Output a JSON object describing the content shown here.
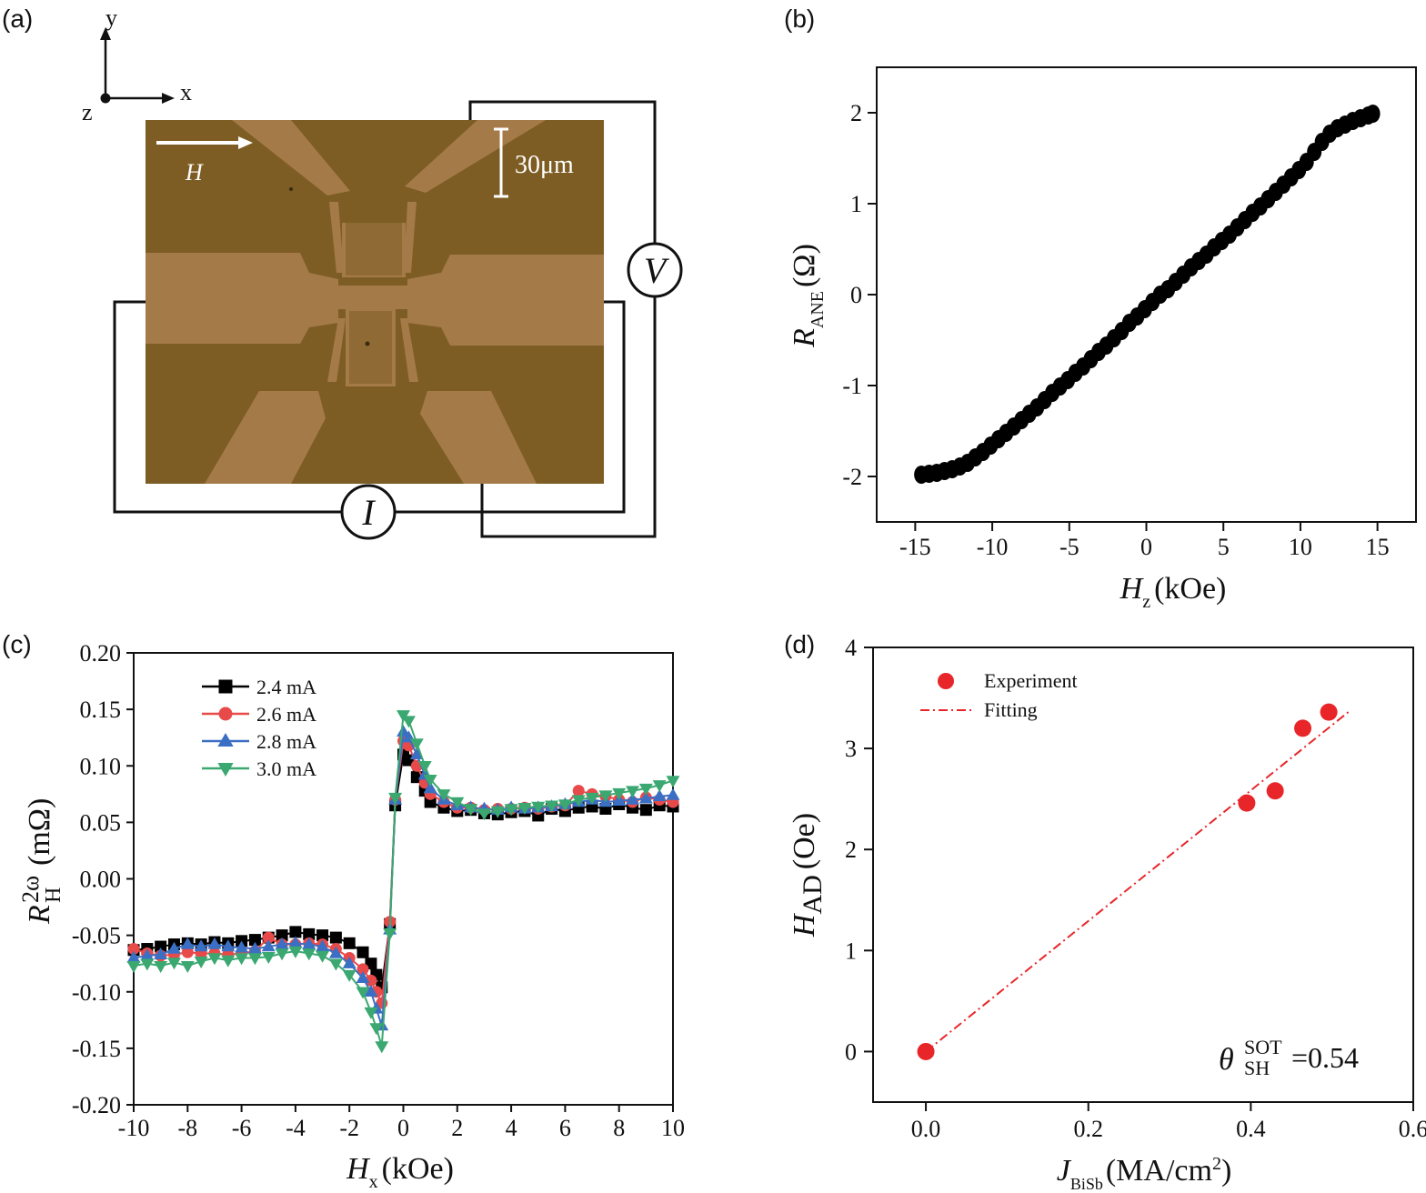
{
  "panel_labels": [
    "(a)",
    "(b)",
    "(c)",
    "(d)"
  ],
  "panel_a": {
    "axes": {
      "y": "y",
      "x": "x",
      "z": "z"
    },
    "field_label": "H",
    "scale_bar": "30μm",
    "voltmeter": "V",
    "ammeter": "I",
    "colors": {
      "chip_bg": "#7e5d24",
      "pads": "#a47a48",
      "wires": "#111111"
    }
  },
  "chart_data": [
    {
      "panel": "(b)",
      "type": "scatter",
      "xlabel": {
        "main": "H",
        "sub": "z",
        "tail": "(kOe)"
      },
      "ylabel": {
        "main": "R",
        "sub": "ANE",
        "tail": "(Ω)"
      },
      "xlim": [
        -17.5,
        17.5
      ],
      "ylim": [
        -2.5,
        2.5
      ],
      "xticks": [
        -15,
        -10,
        -5,
        0,
        5,
        10,
        15
      ],
      "xtick_labels": [
        "-15",
        "-10",
        "-5",
        "0",
        "5",
        "10",
        "15"
      ],
      "yticks": [
        -2,
        -1,
        0,
        1,
        2
      ],
      "ytick_labels": [
        "-2",
        "-1",
        "0",
        "1",
        "2"
      ],
      "marker_color": "#000000",
      "series": [
        {
          "x": [
            -14.6,
            -14.1,
            -13.6,
            -13.1,
            -12.6,
            -12.1,
            -11.6,
            -11.1,
            -10.6,
            -10.1,
            -9.6,
            -9.1,
            -8.6,
            -8.1,
            -7.6,
            -7.1,
            -6.6,
            -6.1,
            -5.6,
            -5.1,
            -4.6,
            -4.1,
            -3.6,
            -3.1,
            -2.6,
            -2.1,
            -1.6,
            -1.1,
            -0.6,
            -0.1,
            0.4,
            0.9,
            1.4,
            1.9,
            2.4,
            2.9,
            3.4,
            3.9,
            4.4,
            4.9,
            5.4,
            5.9,
            6.4,
            6.9,
            7.4,
            7.9,
            8.4,
            8.9,
            9.4,
            9.9,
            10.4,
            10.9,
            11.4,
            11.9,
            12.4,
            12.9,
            13.4,
            13.9,
            14.4,
            14.7
          ],
          "y": [
            -1.98,
            -1.97,
            -1.96,
            -1.94,
            -1.92,
            -1.89,
            -1.85,
            -1.79,
            -1.73,
            -1.66,
            -1.59,
            -1.52,
            -1.45,
            -1.38,
            -1.31,
            -1.24,
            -1.16,
            -1.08,
            -1.01,
            -0.94,
            -0.86,
            -0.79,
            -0.71,
            -0.63,
            -0.56,
            -0.48,
            -0.4,
            -0.31,
            -0.24,
            -0.16,
            -0.08,
            0.0,
            0.06,
            0.14,
            0.22,
            0.3,
            0.37,
            0.44,
            0.52,
            0.59,
            0.66,
            0.74,
            0.82,
            0.9,
            0.97,
            1.05,
            1.13,
            1.21,
            1.29,
            1.37,
            1.46,
            1.57,
            1.68,
            1.77,
            1.83,
            1.87,
            1.91,
            1.94,
            1.97,
            1.99
          ]
        }
      ]
    },
    {
      "panel": "(c)",
      "type": "line",
      "xlabel": {
        "main": "H",
        "sub": "x",
        "tail": "(kOe)"
      },
      "ylabel": {
        "main": "R",
        "sup": "2ω",
        "sub": "H",
        "tail": "(mΩ)"
      },
      "xlim": [
        -10,
        10
      ],
      "ylim": [
        -0.2,
        0.2
      ],
      "xticks": [
        -10,
        -8,
        -6,
        -4,
        -2,
        0,
        2,
        4,
        6,
        8,
        10
      ],
      "xtick_labels": [
        "-10",
        "-8",
        "-6",
        "-4",
        "-2",
        "0",
        "2",
        "4",
        "6",
        "8",
        "10"
      ],
      "yticks": [
        -0.2,
        -0.15,
        -0.1,
        -0.05,
        0,
        0.05,
        0.1,
        0.15,
        0.2
      ],
      "ytick_labels": [
        "-0.20",
        "-0.15",
        "-0.10",
        "-0.05",
        "0.00",
        "0.05",
        "0.10",
        "0.15",
        "0.20"
      ],
      "legend_position": "top-left",
      "series": [
        {
          "name": "2.4 mA",
          "color": "#000000",
          "marker": "square",
          "x": [
            -10,
            -9.5,
            -9,
            -8.5,
            -8,
            -7.5,
            -7,
            -6.5,
            -6,
            -5.5,
            -5,
            -4.5,
            -4,
            -3.5,
            -3,
            -2.5,
            -2,
            -1.5,
            -1.2,
            -1,
            -0.8,
            -0.5,
            -0.3,
            0,
            0.2,
            0.5,
            0.8,
            1,
            1.5,
            2,
            2.5,
            3,
            3.5,
            4,
            4.5,
            5,
            5.5,
            6,
            6.5,
            7,
            7.5,
            8,
            8.5,
            9,
            9.5,
            10
          ],
          "y": [
            -0.063,
            -0.062,
            -0.06,
            -0.058,
            -0.057,
            -0.058,
            -0.056,
            -0.057,
            -0.055,
            -0.054,
            -0.052,
            -0.05,
            -0.047,
            -0.049,
            -0.05,
            -0.052,
            -0.057,
            -0.065,
            -0.075,
            -0.085,
            -0.096,
            -0.04,
            0.065,
            0.11,
            0.105,
            0.09,
            0.078,
            0.068,
            0.063,
            0.06,
            0.061,
            0.058,
            0.057,
            0.059,
            0.06,
            0.056,
            0.062,
            0.06,
            0.063,
            0.064,
            0.062,
            0.066,
            0.063,
            0.061,
            0.065,
            0.064
          ]
        },
        {
          "name": "2.6 mA",
          "color": "#e84a4a",
          "marker": "circle",
          "x": [
            -10,
            -9.5,
            -9,
            -8.5,
            -8,
            -7.5,
            -7,
            -6.5,
            -6,
            -5.5,
            -5,
            -4.5,
            -4,
            -3.5,
            -3,
            -2.5,
            -2,
            -1.5,
            -1.2,
            -1,
            -0.8,
            -0.5,
            -0.3,
            0,
            0.2,
            0.5,
            0.8,
            1,
            1.5,
            2,
            2.5,
            3,
            3.5,
            4,
            4.5,
            5,
            5.5,
            6,
            6.5,
            7,
            7.5,
            8,
            8.5,
            9,
            9.5,
            10
          ],
          "y": [
            -0.062,
            -0.066,
            -0.068,
            -0.067,
            -0.065,
            -0.066,
            -0.066,
            -0.067,
            -0.066,
            -0.064,
            -0.052,
            -0.058,
            -0.058,
            -0.057,
            -0.058,
            -0.062,
            -0.07,
            -0.08,
            -0.09,
            -0.1,
            -0.11,
            -0.038,
            0.07,
            0.122,
            0.118,
            0.1,
            0.085,
            0.075,
            0.068,
            0.063,
            0.063,
            0.061,
            0.062,
            0.062,
            0.063,
            0.062,
            0.064,
            0.065,
            0.078,
            0.075,
            0.073,
            0.07,
            0.068,
            0.072,
            0.07,
            0.068
          ]
        },
        {
          "name": "2.8 mA",
          "color": "#3a6fc4",
          "marker": "triangle-up",
          "x": [
            -10,
            -9.5,
            -9,
            -8.5,
            -8,
            -7.5,
            -7,
            -6.5,
            -6,
            -5.5,
            -5,
            -4.5,
            -4,
            -3.5,
            -3,
            -2.5,
            -2,
            -1.5,
            -1.2,
            -1,
            -0.8,
            -0.5,
            -0.3,
            0,
            0.2,
            0.5,
            0.8,
            1,
            1.5,
            2,
            2.5,
            3,
            3.5,
            4,
            4.5,
            5,
            5.5,
            6,
            6.5,
            7,
            7.5,
            8,
            8.5,
            9,
            9.5,
            10
          ],
          "y": [
            -0.07,
            -0.068,
            -0.067,
            -0.062,
            -0.058,
            -0.06,
            -0.058,
            -0.06,
            -0.061,
            -0.062,
            -0.06,
            -0.058,
            -0.057,
            -0.058,
            -0.06,
            -0.066,
            -0.075,
            -0.088,
            -0.1,
            -0.115,
            -0.13,
            -0.045,
            0.07,
            0.13,
            0.125,
            0.11,
            0.092,
            0.08,
            0.07,
            0.065,
            0.063,
            0.062,
            0.061,
            0.063,
            0.062,
            0.063,
            0.064,
            0.066,
            0.068,
            0.07,
            0.068,
            0.069,
            0.07,
            0.071,
            0.073,
            0.074
          ]
        },
        {
          "name": "3.0 mA",
          "color": "#3aa870",
          "marker": "triangle-down",
          "x": [
            -10,
            -9.5,
            -9,
            -8.5,
            -8,
            -7.5,
            -7,
            -6.5,
            -6,
            -5.5,
            -5,
            -4.5,
            -4,
            -3.5,
            -3,
            -2.5,
            -2,
            -1.5,
            -1.2,
            -1,
            -0.8,
            -0.5,
            -0.3,
            0,
            0.2,
            0.5,
            0.8,
            1,
            1.5,
            2,
            2.5,
            3,
            3.5,
            4,
            4.5,
            5,
            5.5,
            6,
            6.5,
            7,
            7.5,
            8,
            8.5,
            9,
            9.5,
            10
          ],
          "y": [
            -0.077,
            -0.075,
            -0.077,
            -0.074,
            -0.077,
            -0.073,
            -0.07,
            -0.072,
            -0.07,
            -0.07,
            -0.069,
            -0.066,
            -0.064,
            -0.066,
            -0.068,
            -0.075,
            -0.085,
            -0.1,
            -0.118,
            -0.132,
            -0.148,
            -0.048,
            0.072,
            0.145,
            0.14,
            0.12,
            0.1,
            0.088,
            0.075,
            0.068,
            0.062,
            0.058,
            0.06,
            0.062,
            0.063,
            0.064,
            0.065,
            0.066,
            0.07,
            0.072,
            0.074,
            0.076,
            0.078,
            0.08,
            0.083,
            0.087
          ]
        }
      ]
    },
    {
      "panel": "(d)",
      "type": "scatter",
      "xlabel": {
        "main": "J",
        "sub": "BiSb",
        "tail": "(MA/cm",
        "tail_sup": "2",
        "tail_end": ")"
      },
      "ylabel": {
        "main": "H",
        "sub": "AD",
        "tail": "(Oe)"
      },
      "xlim": [
        -0.065,
        0.6
      ],
      "ylim": [
        -0.5,
        4
      ],
      "xticks": [
        0,
        0.2,
        0.4,
        0.6
      ],
      "xtick_labels": [
        "0.0",
        "0.2",
        "0.4",
        "0.6"
      ],
      "yticks": [
        0,
        1,
        2,
        3,
        4
      ],
      "ytick_labels": [
        "0",
        "1",
        "2",
        "3",
        "4"
      ],
      "legend_position": "top-left",
      "legend": [
        "Experiment",
        "Fitting"
      ],
      "series": [
        {
          "name": "Experiment",
          "color": "#e8262a",
          "marker": "circle",
          "x": [
            0.0,
            0.395,
            0.43,
            0.464,
            0.496
          ],
          "y": [
            0.0,
            2.46,
            2.58,
            3.2,
            3.36
          ]
        },
        {
          "name": "Fitting",
          "color": "#e8262a",
          "style": "dash-dot",
          "x": [
            0.0,
            0.52
          ],
          "y": [
            0.0,
            3.36
          ]
        }
      ],
      "annotation": {
        "symbol": "θ",
        "sup": "SOT",
        "sub": "SH",
        "value": "=0.54"
      }
    }
  ]
}
